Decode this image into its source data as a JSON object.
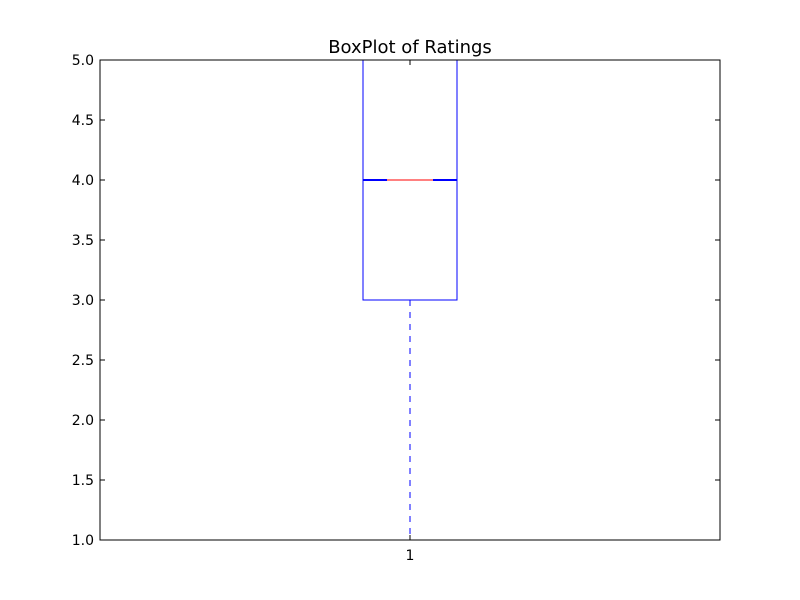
{
  "chart_data": {
    "type": "box",
    "title": "BoxPlot of Ratings",
    "xlabel": "",
    "ylabel": "",
    "ylim": [
      1.0,
      5.0
    ],
    "yticks": [
      "1.0",
      "1.5",
      "2.0",
      "2.5",
      "3.0",
      "3.5",
      "4.0",
      "4.5",
      "5.0"
    ],
    "categories": [
      "1"
    ],
    "boxes": [
      {
        "label": "1",
        "whisker_low": 1.0,
        "q1": 3.0,
        "median": 4.0,
        "q3": 5.0,
        "whisker_high": 5.0,
        "notched": true
      }
    ],
    "grid": false,
    "colors": {
      "box": "#0000ff",
      "median": "#ff0000",
      "whisker": "#0000ff",
      "axes": "#000000"
    }
  }
}
